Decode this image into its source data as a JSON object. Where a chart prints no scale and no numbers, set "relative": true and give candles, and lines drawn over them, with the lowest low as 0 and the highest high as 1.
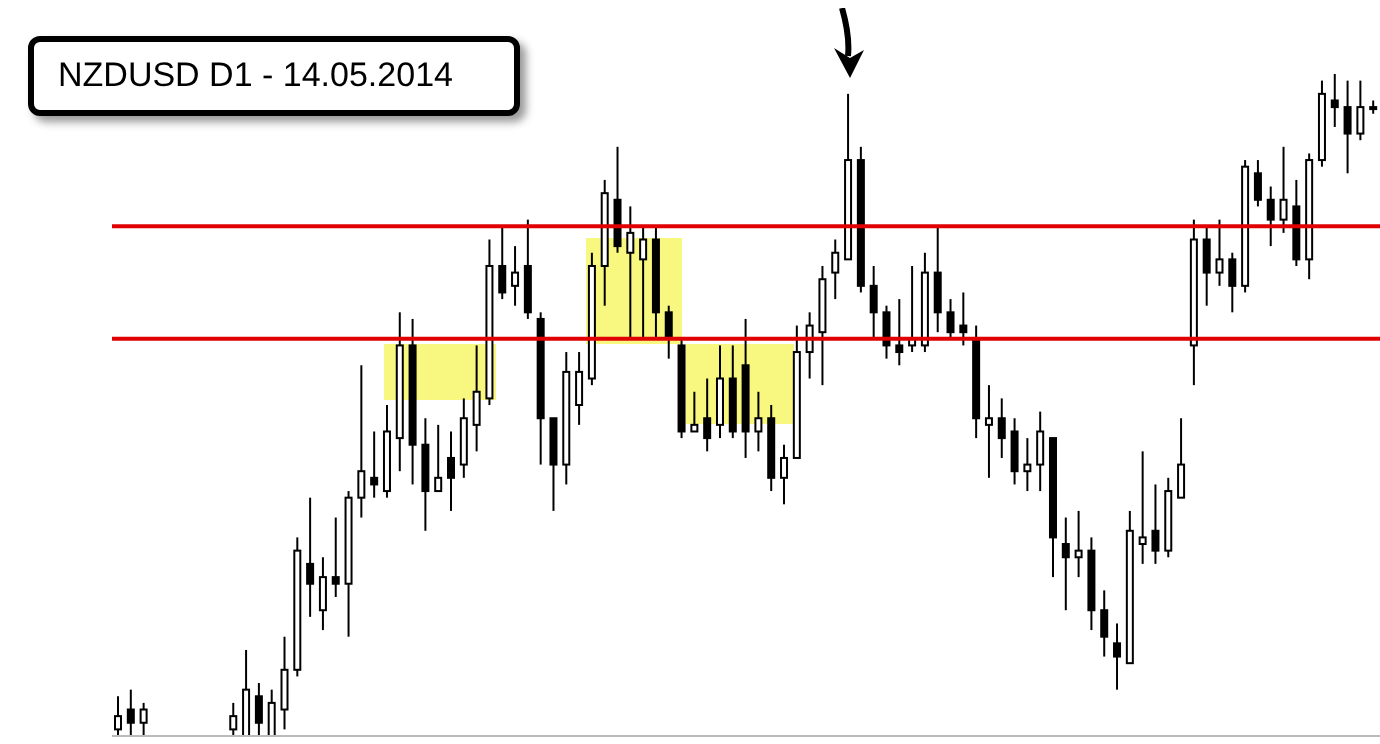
{
  "chart_data": {
    "type": "candlestick",
    "title": "NZDUSD D1 - 14.05.2014",
    "relative": true,
    "categories": [
      null,
      null,
      null,
      null,
      null,
      null,
      null,
      null,
      null,
      null,
      null,
      null,
      null,
      null,
      null,
      null,
      null,
      null,
      null,
      null,
      null,
      null,
      null,
      null,
      null,
      null,
      null,
      null,
      null,
      null,
      null,
      null,
      null,
      null,
      null,
      null,
      null,
      null,
      null,
      null,
      null,
      null,
      null,
      null,
      null,
      null,
      null,
      null,
      null,
      null,
      null,
      null,
      null,
      null,
      null,
      null,
      null,
      null,
      null,
      null,
      null,
      null,
      null,
      null,
      null,
      null,
      null,
      null,
      null,
      null,
      null,
      null,
      null,
      null,
      null,
      null,
      null,
      null,
      null,
      null,
      null,
      null,
      null,
      null,
      null,
      null,
      null,
      null,
      null,
      null,
      null,
      null,
      null,
      null,
      null,
      null,
      null,
      null,
      null
    ],
    "ohlc": [
      [
        0.01,
        0.06,
        0,
        0.03
      ],
      [
        0.04,
        0.07,
        0,
        0.02
      ],
      [
        0.02,
        0.05,
        0,
        0.04
      ],
      null,
      null,
      null,
      null,
      null,
      null,
      [
        0.01,
        0.05,
        0,
        0.03
      ],
      [
        0,
        0.13,
        0,
        0.07
      ],
      [
        0.06,
        0.08,
        0,
        0.02
      ],
      [
        0,
        0.07,
        0,
        0.05
      ],
      [
        0.04,
        0.15,
        0.01,
        0.1
      ],
      [
        0.1,
        0.3,
        0.09,
        0.28
      ],
      [
        0.26,
        0.36,
        0.18,
        0.23
      ],
      [
        0.19,
        0.27,
        0.16,
        0.24
      ],
      [
        0.24,
        0.33,
        0.21,
        0.23
      ],
      [
        0.23,
        0.37,
        0.15,
        0.36
      ],
      [
        0.36,
        0.56,
        0.33,
        0.4
      ],
      [
        0.39,
        0.46,
        0.36,
        0.38
      ],
      [
        0.37,
        0.5,
        0.36,
        0.46
      ],
      [
        0.45,
        0.64,
        0.4,
        0.59
      ],
      [
        0.59,
        0.63,
        0.38,
        0.44
      ],
      [
        0.44,
        0.48,
        0.31,
        0.37
      ],
      [
        0.37,
        0.47,
        0.37,
        0.39
      ],
      [
        0.42,
        0.46,
        0.34,
        0.39
      ],
      [
        0.41,
        0.51,
        0.39,
        0.48
      ],
      [
        0.47,
        0.59,
        0.43,
        0.52
      ],
      [
        0.51,
        0.75,
        0.5,
        0.71
      ],
      [
        0.71,
        0.77,
        0.66,
        0.67
      ],
      [
        0.68,
        0.74,
        0.65,
        0.7
      ],
      [
        0.71,
        0.78,
        0.63,
        0.64
      ],
      [
        0.63,
        0.64,
        0.41,
        0.48
      ],
      [
        0.48,
        0.48,
        0.34,
        0.41
      ],
      [
        0.41,
        0.58,
        0.38,
        0.55
      ],
      [
        0.5,
        0.58,
        0.47,
        0.55
      ],
      [
        0.54,
        0.73,
        0.53,
        0.71
      ],
      [
        0.71,
        0.84,
        0.65,
        0.82
      ],
      [
        0.81,
        0.89,
        0.73,
        0.74
      ],
      [
        0.73,
        0.8,
        0.6,
        0.76
      ],
      [
        0.72,
        0.77,
        0.6,
        0.75
      ],
      [
        0.75,
        0.77,
        0.6,
        0.64
      ],
      [
        0.64,
        0.65,
        0.57,
        0.6
      ],
      [
        0.59,
        0.6,
        0.45,
        0.46
      ],
      [
        0.46,
        0.52,
        0.46,
        0.47
      ],
      [
        0.48,
        0.54,
        0.43,
        0.45
      ],
      [
        0.47,
        0.59,
        0.45,
        0.54
      ],
      [
        0.54,
        0.59,
        0.45,
        0.46
      ],
      [
        0.56,
        0.63,
        0.42,
        0.46
      ],
      [
        0.46,
        0.52,
        0.43,
        0.48
      ],
      [
        0.48,
        0.5,
        0.37,
        0.39
      ],
      [
        0.39,
        0.44,
        0.35,
        0.42
      ],
      [
        0.42,
        0.62,
        0.42,
        0.58
      ],
      [
        0.58,
        0.64,
        0.54,
        0.62
      ],
      [
        0.61,
        0.71,
        0.53,
        0.69
      ],
      [
        0.7,
        0.75,
        0.66,
        0.73
      ],
      [
        0.72,
        0.97,
        0.72,
        0.87
      ],
      [
        0.87,
        0.89,
        0.67,
        0.68
      ],
      [
        0.68,
        0.71,
        0.6,
        0.64
      ],
      [
        0.64,
        0.65,
        0.57,
        0.59
      ],
      [
        0.59,
        0.66,
        0.56,
        0.58
      ],
      [
        0.59,
        0.71,
        0.58,
        0.6
      ],
      [
        0.59,
        0.73,
        0.58,
        0.7
      ],
      [
        0.7,
        0.77,
        0.61,
        0.64
      ],
      [
        0.64,
        0.66,
        0.6,
        0.61
      ],
      [
        0.62,
        0.67,
        0.59,
        0.61
      ],
      [
        0.6,
        0.62,
        0.45,
        0.48
      ],
      [
        0.47,
        0.53,
        0.39,
        0.48
      ],
      [
        0.48,
        0.51,
        0.42,
        0.45
      ],
      [
        0.46,
        0.48,
        0.38,
        0.4
      ],
      [
        0.4,
        0.45,
        0.37,
        0.41
      ],
      [
        0.41,
        0.49,
        0.37,
        0.46
      ],
      [
        0.45,
        0.45,
        0.24,
        0.3
      ],
      [
        0.29,
        0.33,
        0.19,
        0.27
      ],
      [
        0.27,
        0.34,
        0.24,
        0.28
      ],
      [
        0.28,
        0.3,
        0.16,
        0.19
      ],
      [
        0.19,
        0.22,
        0.12,
        0.15
      ],
      [
        0.14,
        0.17,
        0.07,
        0.12
      ],
      [
        0.11,
        0.34,
        0.11,
        0.31
      ],
      [
        0.29,
        0.43,
        0.26,
        0.3
      ],
      [
        0.31,
        0.38,
        0.26,
        0.28
      ],
      [
        0.28,
        0.39,
        0.27,
        0.37
      ],
      [
        0.36,
        0.48,
        0.36,
        0.41
      ],
      [
        0.59,
        0.78,
        0.53,
        0.75
      ],
      [
        0.75,
        0.77,
        0.65,
        0.7
      ],
      [
        0.7,
        0.78,
        0.68,
        0.72
      ],
      [
        0.72,
        0.73,
        0.64,
        0.68
      ],
      [
        0.68,
        0.87,
        0.67,
        0.86
      ],
      [
        0.85,
        0.87,
        0.8,
        0.81
      ],
      [
        0.81,
        0.83,
        0.74,
        0.78
      ],
      [
        0.78,
        0.89,
        0.76,
        0.81
      ],
      [
        0.8,
        0.84,
        0.71,
        0.72
      ],
      [
        0.72,
        0.88,
        0.69,
        0.87
      ],
      [
        0.87,
        0.99,
        0.86,
        0.97
      ],
      [
        0.96,
        1,
        0.92,
        0.95
      ],
      [
        0.95,
        0.99,
        0.85,
        0.91
      ],
      [
        0.91,
        0.99,
        0.9,
        0.95
      ],
      [
        0.95,
        0.96,
        0.94,
        0.95
      ]
    ],
    "ref_lines": [
      {
        "axis": "y",
        "value": 0.77,
        "color": "#e00000"
      },
      {
        "axis": "y",
        "value": 0.6,
        "color": "#e00000"
      }
    ]
  }
}
